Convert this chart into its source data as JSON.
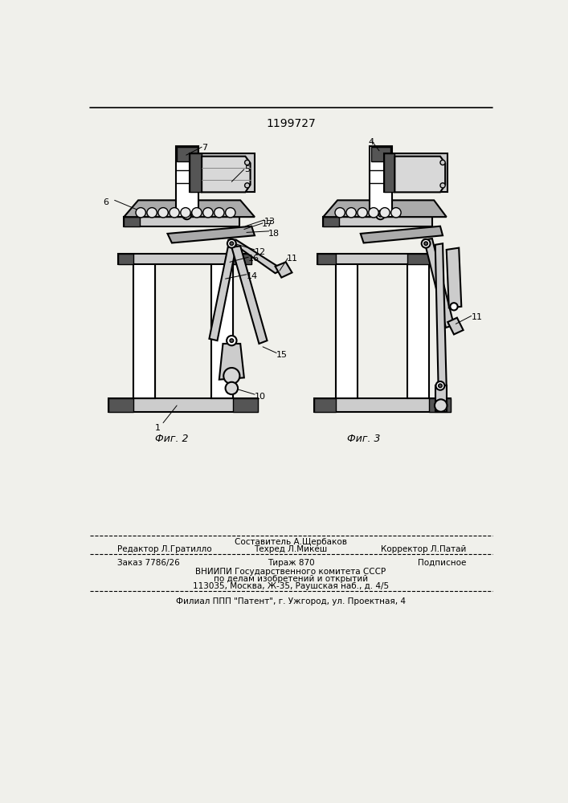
{
  "title": "1199727",
  "bg_color": "#f0f0eb",
  "fig2_caption": "Фиг. 2",
  "fig3_caption": "Фиг. 3",
  "footer_line1_left": "Редактор Л.Гратилло",
  "footer_line1_center_top": "Составитель А.Щербаков",
  "footer_line1_center": "Техред Л.Микеш",
  "footer_line1_right": "Корректор Л.Патай",
  "footer_line2_left": "Заказ 7786/26",
  "footer_line2_center": "Тираж 870",
  "footer_line2_right": "Подписное",
  "footer_line3": "ВНИИПИ Государственного комитета СССР",
  "footer_line4": "по делам изобретений и открытий",
  "footer_line5": "113035, Москва, Ж-35, Раушская наб., д. 4/5",
  "footer_line6": "Филиал ППП \"Патент\", г. Ужгород, ул. Проектная, 4"
}
